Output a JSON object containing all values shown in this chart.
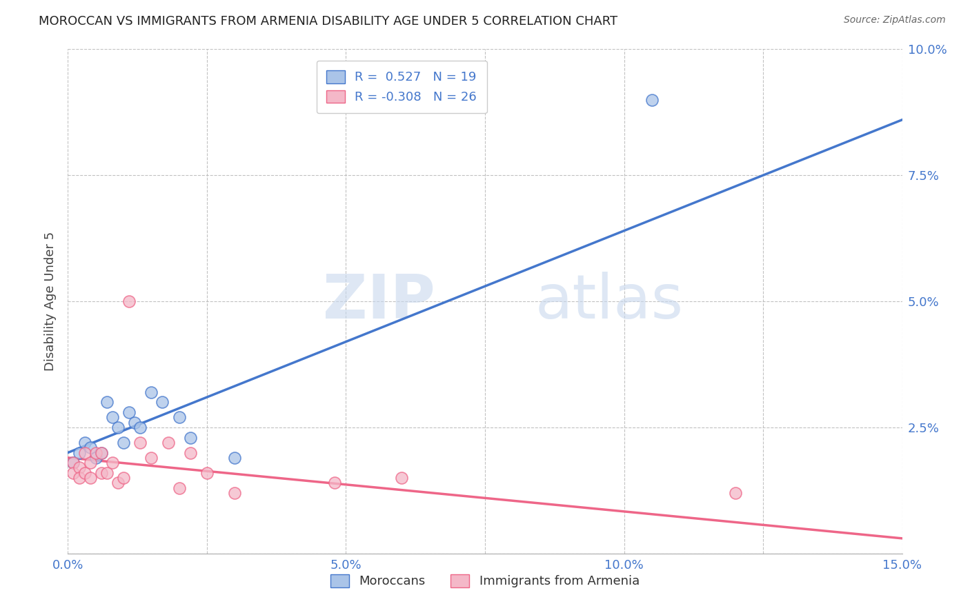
{
  "title": "MOROCCAN VS IMMIGRANTS FROM ARMENIA DISABILITY AGE UNDER 5 CORRELATION CHART",
  "source": "Source: ZipAtlas.com",
  "ylabel": "Disability Age Under 5",
  "xlim": [
    0.0,
    0.15
  ],
  "ylim": [
    0.0,
    0.1
  ],
  "xticks": [
    0.0,
    0.025,
    0.05,
    0.075,
    0.1,
    0.125,
    0.15
  ],
  "yticks": [
    0.0,
    0.025,
    0.05,
    0.075,
    0.1
  ],
  "xtick_labels": [
    "0.0%",
    "",
    "5.0%",
    "",
    "10.0%",
    "",
    "15.0%"
  ],
  "ytick_labels": [
    "",
    "2.5%",
    "5.0%",
    "7.5%",
    "10.0%"
  ],
  "moroccan_R": 0.527,
  "moroccan_N": 19,
  "armenia_R": -0.308,
  "armenia_N": 26,
  "blue_color": "#aac4e8",
  "blue_line_color": "#4477cc",
  "pink_color": "#f4b8c8",
  "pink_line_color": "#ee6688",
  "moroccan_x": [
    0.001,
    0.002,
    0.003,
    0.004,
    0.005,
    0.006,
    0.007,
    0.008,
    0.009,
    0.01,
    0.011,
    0.012,
    0.013,
    0.015,
    0.017,
    0.02,
    0.022,
    0.03,
    0.105
  ],
  "moroccan_y": [
    0.018,
    0.02,
    0.022,
    0.021,
    0.019,
    0.02,
    0.03,
    0.027,
    0.025,
    0.022,
    0.028,
    0.026,
    0.025,
    0.032,
    0.03,
    0.027,
    0.023,
    0.019,
    0.09
  ],
  "armenia_x": [
    0.001,
    0.001,
    0.002,
    0.002,
    0.003,
    0.003,
    0.004,
    0.004,
    0.005,
    0.006,
    0.006,
    0.007,
    0.008,
    0.009,
    0.01,
    0.011,
    0.013,
    0.015,
    0.018,
    0.02,
    0.022,
    0.025,
    0.03,
    0.048,
    0.06,
    0.12
  ],
  "armenia_y": [
    0.018,
    0.016,
    0.017,
    0.015,
    0.02,
    0.016,
    0.018,
    0.015,
    0.02,
    0.016,
    0.02,
    0.016,
    0.018,
    0.014,
    0.015,
    0.05,
    0.022,
    0.019,
    0.022,
    0.013,
    0.02,
    0.016,
    0.012,
    0.014,
    0.015,
    0.012
  ],
  "blue_line_start_x": 0.0,
  "blue_line_start_y": 0.02,
  "blue_line_end_x": 0.15,
  "blue_line_end_y": 0.086,
  "pink_line_start_x": 0.0,
  "pink_line_start_y": 0.019,
  "pink_line_end_x": 0.15,
  "pink_line_end_y": 0.003,
  "watermark_zip": "ZIP",
  "watermark_atlas": "atlas",
  "legend_moroccan": "Moroccans",
  "legend_armenia": "Immigrants from Armenia"
}
